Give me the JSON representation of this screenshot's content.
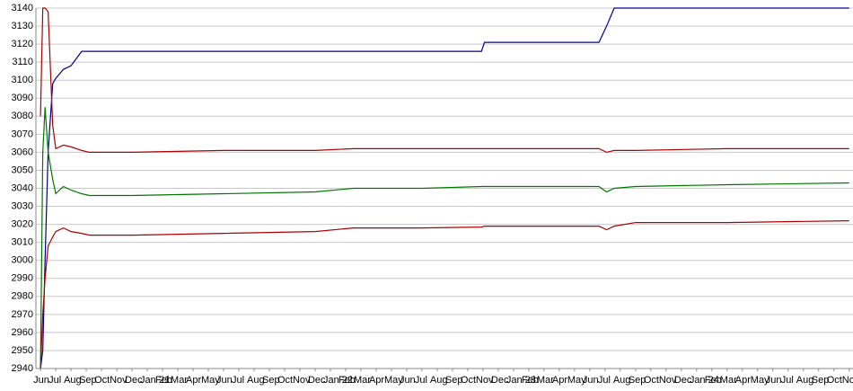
{
  "chart_data": {
    "type": "line",
    "x": [
      0,
      0.15,
      0.3,
      0.5,
      0.8,
      1,
      1.5,
      2,
      2.7,
      3.2,
      6,
      12,
      18,
      20.5,
      25,
      28.9,
      29.1,
      32,
      36.6,
      37.1,
      37.6,
      39,
      45,
      53
    ],
    "series": [
      {
        "color": "#00008b",
        "values": [
          2940,
          2950,
          3000,
          3060,
          3098,
          3101,
          3106,
          3108,
          3116,
          3116,
          3116,
          3116,
          3116,
          3116,
          3116,
          3116,
          3121,
          3121,
          3121,
          3130,
          3140,
          3140,
          3140,
          3140
        ]
      },
      {
        "color": "#aa0000",
        "values": [
          3080,
          3140,
          3140,
          3138,
          3075,
          3062,
          3064,
          3063,
          3061,
          3060,
          3060,
          3061,
          3061,
          3062,
          3062,
          3062,
          3062,
          3062,
          3062,
          3060,
          3061,
          3061,
          3062,
          3062
        ]
      },
      {
        "color": "#007700",
        "values": [
          2940,
          3060,
          3085,
          3060,
          3045,
          3037,
          3041,
          3039,
          3037,
          3036,
          3036,
          3037,
          3038,
          3040,
          3040,
          3041,
          3041,
          3041,
          3041,
          3038,
          3040,
          3041,
          3042,
          3043
        ]
      },
      {
        "color": "#aa0000",
        "values": [
          2940,
          2970,
          2990,
          3008,
          3013,
          3016,
          3018,
          3016,
          3015,
          3014,
          3014,
          3015,
          3016,
          3018,
          3018,
          3018.5,
          3019,
          3019,
          3019,
          3017,
          3019,
          3021,
          3021,
          3022
        ]
      }
    ],
    "xlim": [
      -0.3,
      53.25
    ],
    "xticks": [
      {
        "value": 0,
        "label": "Jun"
      },
      {
        "value": 1,
        "label": "Jul"
      },
      {
        "value": 2,
        "label": "Aug"
      },
      {
        "value": 3,
        "label": "Sep"
      },
      {
        "value": 4,
        "label": "Oct"
      },
      {
        "value": 5,
        "label": "Nov"
      },
      {
        "value": 6,
        "label": "Dec"
      },
      {
        "value": 7,
        "label": "Jan 21"
      },
      {
        "value": 8,
        "label": "Feb"
      },
      {
        "value": 9,
        "label": "Mar"
      },
      {
        "value": 10,
        "label": "Apr"
      },
      {
        "value": 11,
        "label": "May"
      },
      {
        "value": 12,
        "label": "Jun"
      },
      {
        "value": 13,
        "label": "Jul"
      },
      {
        "value": 14,
        "label": "Aug"
      },
      {
        "value": 15,
        "label": "Sep"
      },
      {
        "value": 16,
        "label": "Oct"
      },
      {
        "value": 17,
        "label": "Nov"
      },
      {
        "value": 18,
        "label": "Dec"
      },
      {
        "value": 19,
        "label": "Jan 22"
      },
      {
        "value": 20,
        "label": "Feb"
      },
      {
        "value": 21,
        "label": "Mar"
      },
      {
        "value": 22,
        "label": "Apr"
      },
      {
        "value": 23,
        "label": "May"
      },
      {
        "value": 24,
        "label": "Jun"
      },
      {
        "value": 25,
        "label": "Jul"
      },
      {
        "value": 26,
        "label": "Aug"
      },
      {
        "value": 27,
        "label": "Sep"
      },
      {
        "value": 28,
        "label": "Oct"
      },
      {
        "value": 29,
        "label": "Nov"
      },
      {
        "value": 30,
        "label": "Dec"
      },
      {
        "value": 31,
        "label": "Jan 23"
      },
      {
        "value": 32,
        "label": "Feb"
      },
      {
        "value": 33,
        "label": "Mar"
      },
      {
        "value": 34,
        "label": "Apr"
      },
      {
        "value": 35,
        "label": "May"
      },
      {
        "value": 36,
        "label": "Jun"
      },
      {
        "value": 37,
        "label": "Jul"
      },
      {
        "value": 38,
        "label": "Aug"
      },
      {
        "value": 39,
        "label": "Sep"
      },
      {
        "value": 40,
        "label": "Oct"
      },
      {
        "value": 41,
        "label": "Nov"
      },
      {
        "value": 42,
        "label": "Dec"
      },
      {
        "value": 43,
        "label": "Jan 24"
      },
      {
        "value": 44,
        "label": "Feb"
      },
      {
        "value": 45,
        "label": "Mar"
      },
      {
        "value": 46,
        "label": "Apr"
      },
      {
        "value": 47,
        "label": "May"
      },
      {
        "value": 48,
        "label": "Jun"
      },
      {
        "value": 49,
        "label": "Jul"
      },
      {
        "value": 50,
        "label": "Aug"
      },
      {
        "value": 51,
        "label": "Sep"
      },
      {
        "value": 52,
        "label": "Oct"
      },
      {
        "value": 53,
        "label": "Nov"
      }
    ],
    "ylim": [
      2940,
      3140
    ],
    "yticks": [
      2940,
      2950,
      2960,
      2970,
      2980,
      2990,
      3000,
      3010,
      3020,
      3030,
      3040,
      3050,
      3060,
      3070,
      3080,
      3090,
      3100,
      3110,
      3120,
      3130,
      3140
    ],
    "grid": true
  }
}
